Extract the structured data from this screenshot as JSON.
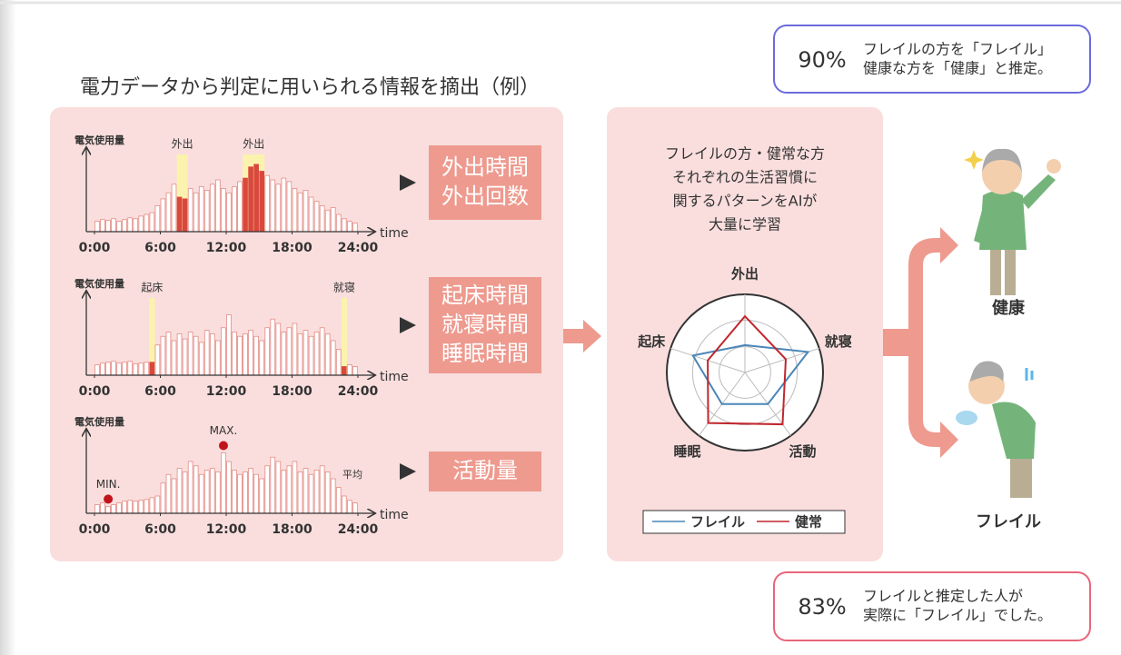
{
  "header": {
    "title": "電力データから判定に用いられる情報を摘出（例）"
  },
  "chart_data": [
    {
      "type": "bar",
      "y_label": "電気使用量",
      "x_label": "time",
      "xlim": [
        0,
        24
      ],
      "xticks": [
        {
          "value": 0,
          "label": "0:00"
        },
        {
          "value": 6,
          "label": "6:00"
        },
        {
          "value": 12,
          "label": "12:00"
        },
        {
          "value": 18,
          "label": "18:00"
        },
        {
          "value": 24,
          "label": "24:00"
        }
      ],
      "ylim": [
        0,
        100
      ],
      "x": [
        0,
        0.5,
        1,
        1.5,
        2,
        2.5,
        3,
        3.5,
        4,
        4.5,
        5,
        5.5,
        6,
        6.5,
        7,
        7.5,
        8,
        8.5,
        9,
        9.5,
        10,
        10.5,
        11,
        11.5,
        12,
        12.5,
        13,
        13.5,
        14,
        14.5,
        15,
        15.5,
        16,
        16.5,
        17,
        17.5,
        18,
        18.5,
        19,
        19.5,
        20,
        20.5,
        21,
        21.5,
        22,
        22.5,
        23,
        23.5
      ],
      "values": [
        12,
        14,
        13,
        15,
        12,
        14,
        16,
        15,
        18,
        20,
        22,
        30,
        38,
        45,
        55,
        40,
        38,
        50,
        45,
        52,
        48,
        55,
        60,
        50,
        45,
        52,
        58,
        62,
        75,
        78,
        70,
        65,
        60,
        55,
        62,
        58,
        50,
        45,
        48,
        40,
        35,
        30,
        25,
        28,
        20,
        15,
        12,
        10
      ],
      "color": "#ffffff",
      "edge_color": "#e58b84",
      "highlight_color": "#fbf3ad",
      "highlight_bar_color": "#d9483d",
      "highlights": [
        {
          "label": "外出",
          "from": 7.5,
          "to": 8.5
        },
        {
          "label": "外出",
          "from": 13.5,
          "to": 15.5
        }
      ]
    },
    {
      "type": "bar",
      "y_label": "電気使用量",
      "x_label": "time",
      "xlim": [
        0,
        24
      ],
      "xticks": [
        {
          "value": 0,
          "label": "0:00"
        },
        {
          "value": 6,
          "label": "6:00"
        },
        {
          "value": 12,
          "label": "12:00"
        },
        {
          "value": 18,
          "label": "18:00"
        },
        {
          "value": 24,
          "label": "24:00"
        }
      ],
      "ylim": [
        0,
        100
      ],
      "x": [
        0,
        0.5,
        1,
        1.5,
        2,
        2.5,
        3,
        3.5,
        4,
        4.5,
        5,
        5.5,
        6,
        6.5,
        7,
        7.5,
        8,
        8.5,
        9,
        9.5,
        10,
        10.5,
        11,
        11.5,
        12,
        12.5,
        13,
        13.5,
        14,
        14.5,
        15,
        15.5,
        16,
        16.5,
        17,
        17.5,
        18,
        18.5,
        19,
        19.5,
        20,
        20.5,
        21,
        21.5,
        22,
        22.5,
        23,
        23.5
      ],
      "values": [
        12,
        14,
        15,
        16,
        14,
        15,
        16,
        13,
        14,
        15,
        15,
        35,
        45,
        50,
        40,
        48,
        42,
        50,
        45,
        38,
        52,
        48,
        40,
        55,
        70,
        50,
        45,
        48,
        52,
        45,
        40,
        55,
        65,
        60,
        50,
        55,
        60,
        48,
        52,
        45,
        50,
        55,
        48,
        40,
        30,
        10,
        12,
        10
      ],
      "color": "#ffffff",
      "edge_color": "#e58b84",
      "highlight_color": "#fbf3ad",
      "highlight_bar_color": "#d9483d",
      "highlights": [
        {
          "label": "起床",
          "from": 5,
          "to": 5.5
        },
        {
          "label": "就寝",
          "from": 22.5,
          "to": 23
        }
      ]
    },
    {
      "type": "bar",
      "y_label": "電気使用量",
      "x_label": "time",
      "xlim": [
        0,
        24
      ],
      "xticks": [
        {
          "value": 0,
          "label": "0:00"
        },
        {
          "value": 6,
          "label": "6:00"
        },
        {
          "value": 12,
          "label": "12:00"
        },
        {
          "value": 18,
          "label": "18:00"
        },
        {
          "value": 24,
          "label": "24:00"
        }
      ],
      "ylim": [
        0,
        100
      ],
      "x": [
        0,
        0.5,
        1,
        1.5,
        2,
        2.5,
        3,
        3.5,
        4,
        4.5,
        5,
        5.5,
        6,
        6.5,
        7,
        7.5,
        8,
        8.5,
        9,
        9.5,
        10,
        10.5,
        11,
        11.5,
        12,
        12.5,
        13,
        13.5,
        14,
        14.5,
        15,
        15.5,
        16,
        16.5,
        17,
        17.5,
        18,
        18.5,
        19,
        19.5,
        20,
        20.5,
        21,
        21.5,
        22,
        22.5,
        23,
        23.5
      ],
      "values": [
        10,
        12,
        8,
        10,
        12,
        14,
        15,
        14,
        15,
        16,
        18,
        20,
        35,
        45,
        40,
        52,
        48,
        60,
        55,
        45,
        50,
        52,
        48,
        70,
        60,
        50,
        45,
        48,
        52,
        45,
        40,
        55,
        65,
        60,
        50,
        55,
        60,
        48,
        52,
        45,
        50,
        55,
        48,
        40,
        30,
        20,
        15,
        12
      ],
      "color": "#ffffff",
      "edge_color": "#e58b84",
      "marker_color": "#c0141c",
      "markers": [
        {
          "label": "MIN.",
          "x": 1
        },
        {
          "label": "MAX.",
          "x": 11.5
        }
      ],
      "note": "平均"
    },
    {
      "type": "radar",
      "axes": [
        "外出",
        "就寝",
        "活動",
        "睡眠",
        "起床"
      ],
      "rlim": [
        0,
        100
      ],
      "rticks": [
        33,
        67
      ],
      "series": [
        {
          "name": "フレイル",
          "color": "#4a86b8",
          "values": [
            35,
            85,
            50,
            50,
            70
          ]
        },
        {
          "name": "健常",
          "color": "#c0272d",
          "values": [
            72,
            55,
            82,
            80,
            50
          ]
        }
      ]
    }
  ],
  "extractions": [
    {
      "lines": [
        "外出時間",
        "外出回数"
      ]
    },
    {
      "lines": [
        "起床時間",
        "就寝時間",
        "睡眠時間"
      ]
    },
    {
      "lines": [
        "活動量"
      ]
    }
  ],
  "model": {
    "lines": [
      "フレイルの方・健常な方",
      "それぞれの生活習慣に",
      "関するパターンをAIが",
      "大量に学習"
    ]
  },
  "outcomes": {
    "healthy": "健康",
    "frail": "フレイル"
  },
  "stats": [
    {
      "value": "90%",
      "lines": [
        "フレイルの方を「フレイル」",
        "健康な方を「健康」と推定。"
      ]
    },
    {
      "value": "83%",
      "lines": [
        "フレイルと推定した人が",
        "実際に「フレイル」でした。"
      ]
    }
  ]
}
